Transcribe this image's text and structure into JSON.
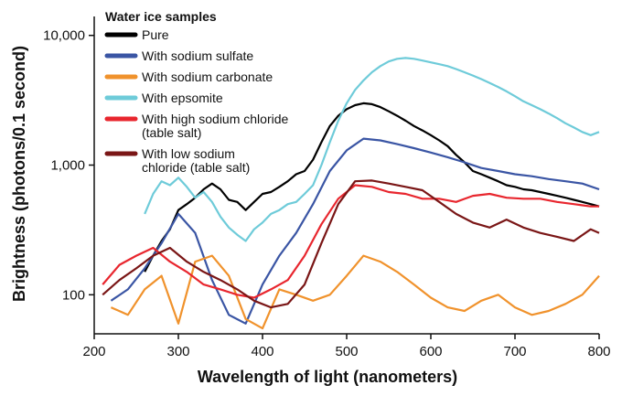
{
  "chart_data": {
    "type": "line",
    "xlabel": "Wavelength of light (nanometers)",
    "ylabel": "Brightness (photons/0.1 second)",
    "x_scale": "linear",
    "y_scale": "log",
    "xlim": [
      200,
      800
    ],
    "ylim": [
      50,
      14000
    ],
    "x_ticks": [
      200,
      300,
      400,
      500,
      600,
      700,
      800
    ],
    "y_ticks": [
      100,
      1000,
      10000
    ],
    "y_tick_labels": [
      "100",
      "1,000",
      "10,000"
    ],
    "grid": false,
    "legend_position": "top-left",
    "legend_title": "Water ice samples",
    "series": [
      {
        "name": "Pure",
        "color": "#000000",
        "x": [
          260,
          270,
          280,
          290,
          300,
          310,
          320,
          330,
          340,
          350,
          360,
          370,
          380,
          390,
          400,
          410,
          420,
          430,
          440,
          450,
          460,
          470,
          480,
          490,
          500,
          510,
          520,
          530,
          540,
          550,
          560,
          570,
          580,
          590,
          600,
          610,
          620,
          630,
          640,
          650,
          660,
          670,
          680,
          690,
          700,
          710,
          720,
          730,
          740,
          750,
          760,
          770,
          780,
          790,
          800
        ],
        "y": [
          150,
          200,
          260,
          320,
          450,
          500,
          560,
          650,
          720,
          650,
          540,
          520,
          450,
          520,
          600,
          620,
          680,
          750,
          850,
          900,
          1100,
          1500,
          2000,
          2400,
          2700,
          2900,
          3000,
          2950,
          2800,
          2600,
          2400,
          2200,
          2000,
          1850,
          1700,
          1550,
          1400,
          1200,
          1050,
          900,
          850,
          800,
          750,
          700,
          680,
          650,
          640,
          620,
          600,
          580,
          560,
          540,
          520,
          500,
          480
        ]
      },
      {
        "name": "With sodium sulfate",
        "color": "#3a55a4",
        "x": [
          220,
          240,
          260,
          280,
          300,
          320,
          340,
          360,
          380,
          400,
          420,
          440,
          460,
          480,
          500,
          520,
          540,
          560,
          580,
          600,
          620,
          640,
          660,
          680,
          700,
          720,
          740,
          760,
          780,
          800
        ],
        "y": [
          90,
          110,
          160,
          250,
          420,
          300,
          130,
          70,
          60,
          120,
          200,
          300,
          500,
          900,
          1300,
          1600,
          1550,
          1450,
          1350,
          1250,
          1150,
          1050,
          950,
          900,
          850,
          820,
          780,
          750,
          720,
          650
        ]
      },
      {
        "name": "With sodium carbonate",
        "color": "#f0922c",
        "x": [
          220,
          240,
          260,
          280,
          300,
          320,
          340,
          360,
          380,
          400,
          420,
          440,
          460,
          480,
          500,
          520,
          540,
          560,
          580,
          600,
          620,
          640,
          660,
          680,
          700,
          720,
          740,
          760,
          780,
          800
        ],
        "y": [
          80,
          70,
          110,
          140,
          60,
          180,
          200,
          140,
          65,
          55,
          110,
          100,
          90,
          100,
          140,
          200,
          180,
          150,
          120,
          95,
          80,
          75,
          90,
          100,
          80,
          70,
          75,
          85,
          100,
          140
        ]
      },
      {
        "name": "With epsomite",
        "color": "#6ecbd9",
        "x": [
          260,
          270,
          280,
          290,
          300,
          310,
          320,
          330,
          340,
          350,
          360,
          370,
          380,
          390,
          400,
          410,
          420,
          430,
          440,
          450,
          460,
          470,
          480,
          490,
          500,
          510,
          520,
          530,
          540,
          550,
          560,
          570,
          580,
          590,
          600,
          610,
          620,
          630,
          640,
          650,
          660,
          670,
          680,
          690,
          700,
          710,
          720,
          730,
          740,
          750,
          760,
          770,
          780,
          790,
          800
        ],
        "y": [
          420,
          600,
          750,
          700,
          800,
          680,
          560,
          620,
          520,
          400,
          330,
          290,
          260,
          320,
          360,
          420,
          450,
          500,
          520,
          600,
          700,
          1000,
          1500,
          2200,
          3000,
          3800,
          4500,
          5200,
          5800,
          6300,
          6600,
          6700,
          6600,
          6400,
          6200,
          6000,
          5800,
          5500,
          5200,
          4900,
          4600,
          4300,
          4000,
          3700,
          3400,
          3100,
          2900,
          2700,
          2500,
          2300,
          2100,
          1950,
          1800,
          1700,
          1800
        ]
      },
      {
        "name": "With high sodium chloride (table salt)",
        "color": "#e8262e",
        "x": [
          210,
          230,
          250,
          270,
          290,
          310,
          330,
          350,
          370,
          390,
          410,
          430,
          450,
          470,
          490,
          510,
          530,
          550,
          570,
          590,
          610,
          630,
          650,
          670,
          690,
          710,
          730,
          750,
          770,
          790,
          800
        ],
        "y": [
          120,
          170,
          200,
          230,
          180,
          150,
          120,
          110,
          100,
          95,
          110,
          130,
          200,
          350,
          550,
          700,
          680,
          620,
          600,
          550,
          550,
          520,
          580,
          600,
          560,
          550,
          550,
          520,
          500,
          480,
          480
        ]
      },
      {
        "name": "With low sodium chloride (table salt)",
        "color": "#7a1616",
        "x": [
          210,
          230,
          250,
          270,
          290,
          310,
          330,
          350,
          370,
          390,
          410,
          430,
          450,
          470,
          490,
          510,
          530,
          550,
          570,
          590,
          610,
          630,
          650,
          670,
          690,
          710,
          730,
          750,
          770,
          790,
          800
        ],
        "y": [
          100,
          130,
          160,
          200,
          230,
          180,
          150,
          130,
          110,
          90,
          80,
          85,
          120,
          250,
          500,
          750,
          760,
          720,
          680,
          640,
          520,
          420,
          360,
          330,
          380,
          330,
          300,
          280,
          260,
          320,
          300
        ]
      }
    ]
  },
  "legend": {
    "title": "Water ice samples",
    "items": [
      {
        "lines": [
          "Pure"
        ],
        "color": "#000000"
      },
      {
        "lines": [
          "With sodium sulfate"
        ],
        "color": "#3a55a4"
      },
      {
        "lines": [
          "With sodium carbonate"
        ],
        "color": "#f0922c"
      },
      {
        "lines": [
          "With epsomite"
        ],
        "color": "#6ecbd9"
      },
      {
        "lines": [
          "With high sodium chloride",
          "(table salt)"
        ],
        "color": "#e8262e"
      },
      {
        "lines": [
          "With low sodium",
          "chloride (table salt)"
        ],
        "color": "#7a1616"
      }
    ]
  }
}
